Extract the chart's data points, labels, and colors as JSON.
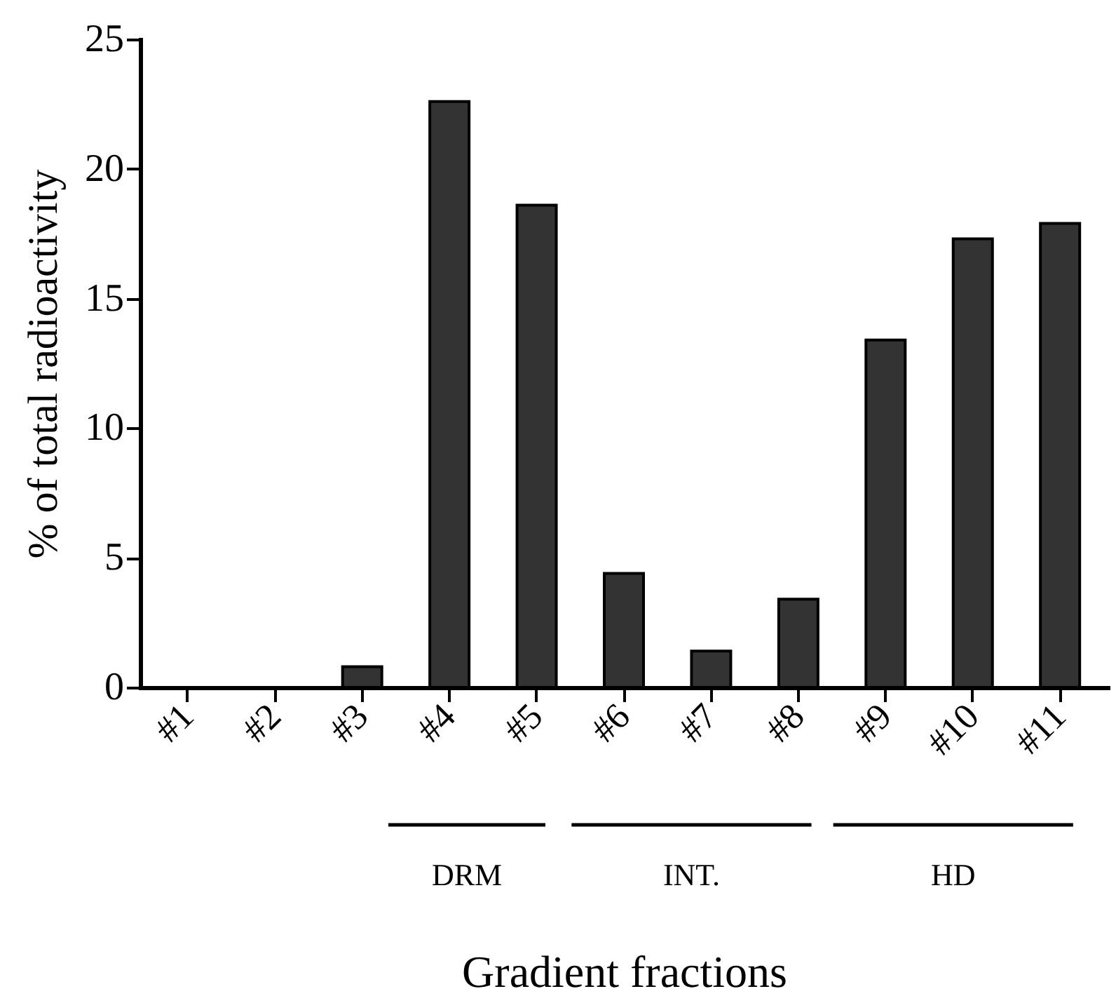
{
  "chart_data": {
    "type": "bar",
    "xlabel": "Gradient fractions",
    "ylabel": "% of total radioactivity",
    "categories": [
      "#1",
      "#2",
      "#3",
      "#4",
      "#5",
      "#6",
      "#7",
      "#8",
      "#9",
      "#10",
      "#11"
    ],
    "values": [
      0,
      0,
      0.8,
      22.6,
      18.6,
      4.4,
      1.4,
      3.4,
      13.4,
      17.3,
      17.9
    ],
    "color": "#333333",
    "ylim": [
      0,
      25
    ],
    "yticks": [
      0,
      5,
      10,
      15,
      20,
      25
    ],
    "grid": false,
    "annotations": [
      "DRM",
      "INT.",
      "HD"
    ]
  }
}
